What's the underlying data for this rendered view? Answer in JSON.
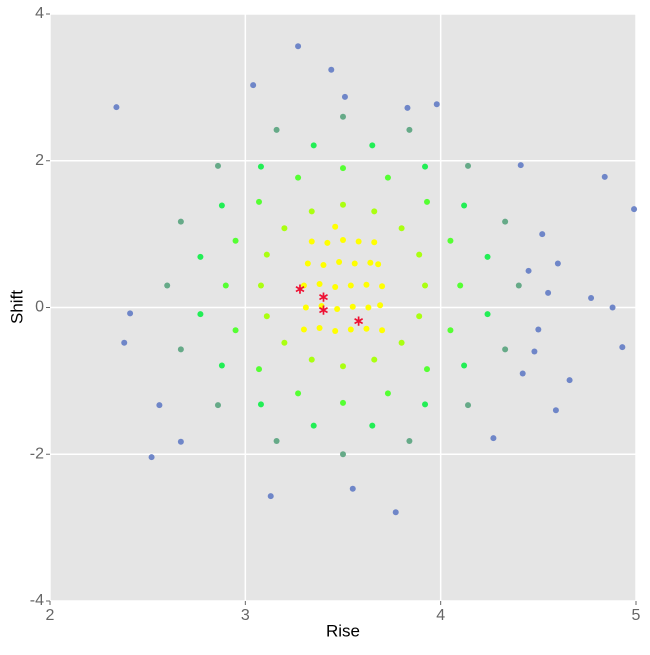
{
  "chart_data": {
    "type": "scatter",
    "xlabel": "Rise",
    "ylabel": "Shift",
    "xlim": [
      2,
      5
    ],
    "ylim": [
      -4,
      4
    ],
    "xticks": [
      2,
      3,
      4,
      5
    ],
    "yticks": [
      -4,
      -2,
      0,
      2,
      4
    ],
    "grid": true,
    "series": [
      {
        "color": "#6f86c8",
        "marker": "circle",
        "x": [
          2.34,
          3.27,
          3.44,
          3.51,
          3.04,
          2.52,
          3.77,
          3.13,
          4.99,
          4.84,
          4.93,
          4.88,
          2.38,
          2.41,
          4.59,
          4.41,
          4.27,
          4.77,
          4.66,
          2.56,
          2.67,
          3.98,
          3.83,
          3.55,
          4.45,
          4.5,
          4.55,
          4.48,
          4.6,
          4.52,
          4.42
        ],
        "y": [
          2.73,
          3.56,
          3.24,
          2.87,
          3.03,
          -2.04,
          -2.79,
          -2.57,
          1.34,
          1.78,
          -0.54,
          0.0,
          -0.48,
          -0.08,
          -1.4,
          1.94,
          -1.78,
          0.13,
          -0.99,
          -1.33,
          -1.83,
          2.77,
          2.72,
          -2.47,
          0.5,
          -0.3,
          0.2,
          -0.6,
          0.6,
          1.0,
          -0.9
        ]
      },
      {
        "color": "#66aa88",
        "marker": "circle",
        "x": [
          4.4,
          4.33,
          4.14,
          3.84,
          3.5,
          3.16,
          2.86,
          2.67,
          2.6,
          2.67,
          2.86,
          3.16,
          3.5,
          3.84,
          4.14,
          4.33
        ],
        "y": [
          0.3,
          1.17,
          1.93,
          2.42,
          2.6,
          2.42,
          1.93,
          1.17,
          0.3,
          -0.57,
          -1.33,
          -1.82,
          -2.0,
          -1.82,
          -1.33,
          -0.57
        ]
      },
      {
        "color": "#22ee55",
        "marker": "circle",
        "x": [
          4.24,
          4.12,
          3.92,
          3.65,
          3.35,
          3.08,
          2.88,
          2.77,
          2.77,
          2.88,
          3.08,
          3.35,
          3.65,
          3.92,
          4.12,
          4.24
        ],
        "y": [
          0.69,
          1.39,
          1.92,
          2.21,
          2.21,
          1.92,
          1.39,
          0.69,
          -0.09,
          -0.79,
          -1.32,
          -1.61,
          -1.61,
          -1.32,
          -0.79,
          -0.09
        ]
      },
      {
        "color": "#55ff33",
        "marker": "circle",
        "x": [
          4.1,
          4.05,
          3.93,
          3.73,
          3.5,
          3.27,
          3.07,
          2.95,
          2.9,
          2.95,
          3.07,
          3.27,
          3.5,
          3.73,
          3.93,
          4.05
        ],
        "y": [
          0.3,
          0.91,
          1.44,
          1.77,
          1.9,
          1.77,
          1.44,
          0.91,
          0.3,
          -0.31,
          -0.84,
          -1.17,
          -1.3,
          -1.17,
          -0.84,
          -0.31
        ]
      },
      {
        "color": "#aaff11",
        "marker": "circle",
        "x": [
          3.92,
          3.89,
          3.8,
          3.66,
          3.5,
          3.34,
          3.2,
          3.11,
          3.08,
          3.11,
          3.2,
          3.34,
          3.5,
          3.66,
          3.8,
          3.89
        ],
        "y": [
          0.3,
          0.72,
          1.08,
          1.31,
          1.4,
          1.31,
          1.08,
          0.72,
          0.3,
          -0.12,
          -0.48,
          -0.71,
          -0.8,
          -0.71,
          -0.48,
          -0.12
        ]
      },
      {
        "color": "#ffff00",
        "marker": "circle",
        "x": [
          3.3,
          3.38,
          3.46,
          3.54,
          3.62,
          3.7,
          3.31,
          3.39,
          3.47,
          3.55,
          3.63,
          3.69,
          3.3,
          3.38,
          3.46,
          3.54,
          3.62,
          3.7,
          3.32,
          3.4,
          3.48,
          3.56,
          3.64,
          3.68,
          3.34,
          3.42,
          3.5,
          3.58,
          3.66,
          3.46
        ],
        "y": [
          -0.3,
          -0.28,
          -0.32,
          -0.3,
          -0.29,
          -0.31,
          0.0,
          0.02,
          -0.02,
          0.01,
          0.0,
          0.03,
          0.3,
          0.32,
          0.28,
          0.3,
          0.31,
          0.29,
          0.6,
          0.58,
          0.62,
          0.6,
          0.61,
          0.59,
          0.9,
          0.88,
          0.92,
          0.9,
          0.89,
          1.1
        ]
      },
      {
        "color": "#ee1133",
        "marker": "star",
        "x": [
          3.28,
          3.4,
          3.4,
          3.58
        ],
        "y": [
          0.27,
          0.16,
          -0.02,
          -0.17
        ]
      }
    ]
  }
}
